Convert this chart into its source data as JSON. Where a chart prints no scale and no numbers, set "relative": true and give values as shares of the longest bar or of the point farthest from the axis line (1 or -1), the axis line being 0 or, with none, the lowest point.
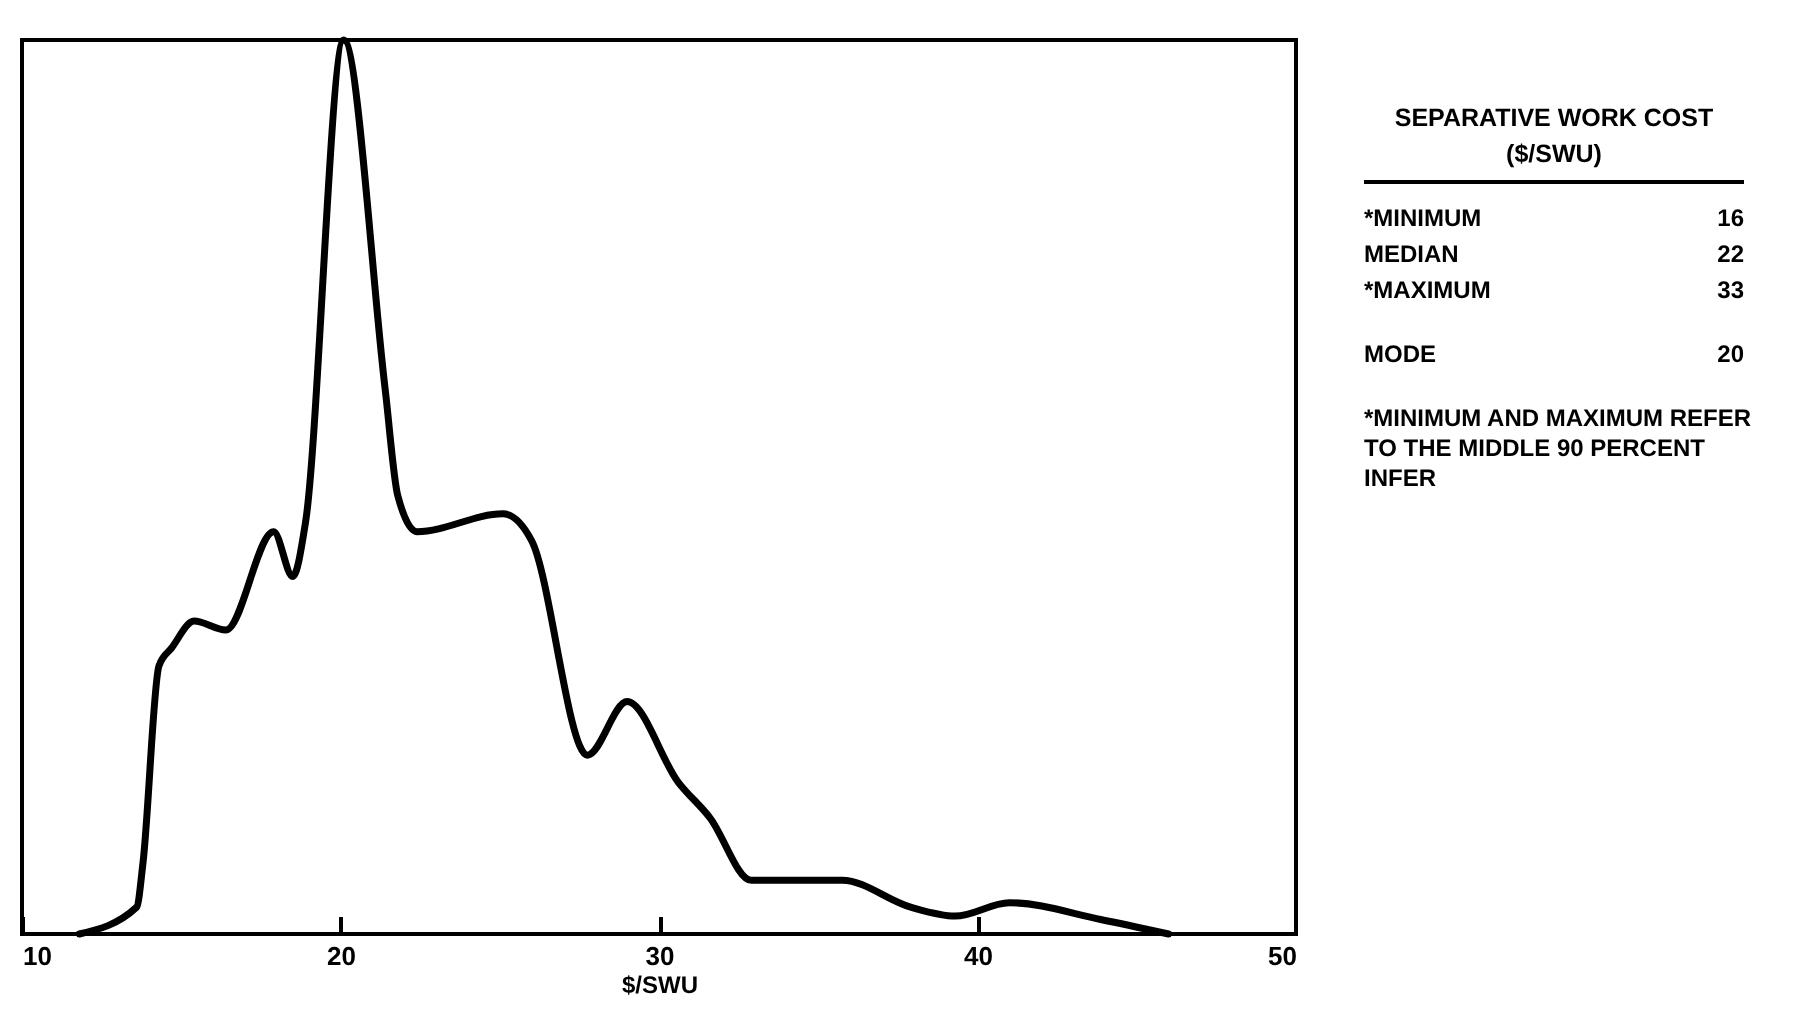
{
  "chart_data": {
    "type": "line",
    "relative": true,
    "xlabel": "$/SWU",
    "xlim": [
      10,
      50
    ],
    "xticks": [
      10,
      20,
      30,
      40,
      50
    ],
    "grid": false,
    "legend": false,
    "line_style": "solid",
    "x": [
      11.8,
      13.6,
      13.8,
      14.3,
      14.7,
      15.4,
      16.4,
      17.9,
      18.5,
      18.9,
      20.1,
      21.4,
      21.8,
      22.4,
      25.1,
      26.0,
      27.75,
      29.0,
      30.6,
      31.6,
      32.9,
      35.75,
      37.9,
      39.3,
      41.0,
      43.9,
      46.0
    ],
    "series": [
      {
        "color": "#000000",
        "values": [
          0,
          0.03,
          0.08,
          0.3,
          0.32,
          0.35,
          0.34,
          0.45,
          0.4,
          0.46,
          1.0,
          0.61,
          0.49,
          0.45,
          0.47,
          0.44,
          0.2,
          0.26,
          0.17,
          0.13,
          0.06,
          0.06,
          0.03,
          0.02,
          0.035,
          0.016,
          0
        ]
      }
    ],
    "annotations": [
      "SEPARATIVE WORK COST",
      "($/SWU)",
      "*MINIMUM",
      "16",
      "MEDIAN",
      "22",
      "*MAXIMUM",
      "33",
      "MODE",
      "20",
      "*MINIMUM AND MAXIMUM REFER TO THE MIDDLE 90 PERCENT INFER"
    ]
  }
}
